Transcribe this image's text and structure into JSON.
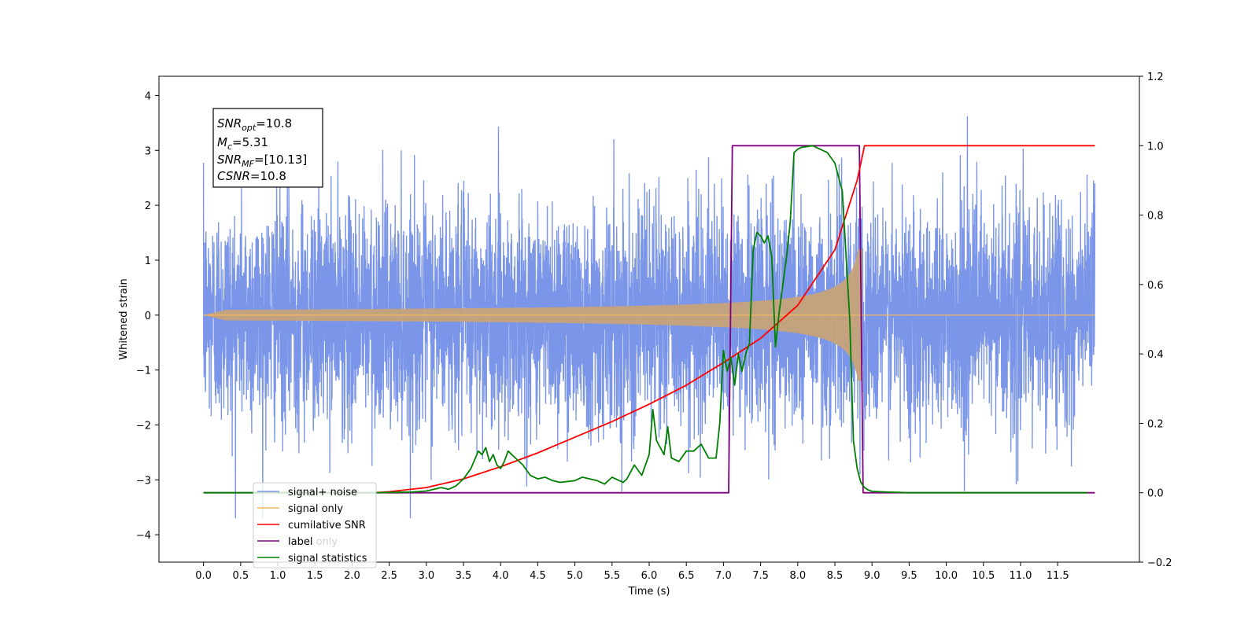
{
  "chart_data": {
    "type": "line",
    "xlabel": "Time (s)",
    "ylabel": "Whitened strain",
    "xlim": [
      -0.6,
      12.6
    ],
    "ylim": [
      -4.5,
      4.35
    ],
    "y2lim": [
      -0.2,
      1.2
    ],
    "grid": false,
    "legend_position": "lower-left",
    "x_ticks": [
      "0.0",
      "0.5",
      "1.0",
      "1.5",
      "2.0",
      "2.5",
      "3.0",
      "3.5",
      "4.0",
      "4.5",
      "5.0",
      "5.5",
      "6.0",
      "6.5",
      "7.0",
      "7.5",
      "8.0",
      "8.5",
      "9.0",
      "9.5",
      "10.0",
      "10.5",
      "11.0",
      "11.5"
    ],
    "y_ticks": [
      "4",
      "3",
      "2",
      "1",
      "0",
      "−1",
      "−2",
      "−3",
      "−4"
    ],
    "y2_ticks": [
      "1.2",
      "1.0",
      "0.8",
      "0.6",
      "0.4",
      "0.2",
      "0.0",
      "−0.2"
    ],
    "annotation": {
      "snr_opt": {
        "symbol": "SNR",
        "subscript": "opt",
        "value": "=10.8"
      },
      "mc": {
        "symbol": "M",
        "subscript": "c",
        "value": "=5.31"
      },
      "snr_mf": {
        "symbol": "SNR",
        "subscript": "MF",
        "value": "=[10.13]"
      },
      "csnr": {
        "symbol": "CSNR",
        "value": "=10.8"
      }
    },
    "series": [
      {
        "name": "signal+ noise",
        "axis": "left",
        "color": "#7b96e8",
        "description_range": [
          -3.7,
          3.9
        ],
        "x_range": [
          0.0,
          12.0
        ]
      },
      {
        "name": "signal only",
        "axis": "left",
        "color": "#f5b860",
        "fill_color": "#c7a27a",
        "chirp_end": 8.87,
        "max_amplitude": 1.2
      },
      {
        "name": "cumilative SNR",
        "axis": "right",
        "color": "#ff0000",
        "x": [
          2.3,
          2.5,
          3.0,
          3.5,
          4.0,
          4.5,
          5.0,
          5.5,
          6.0,
          6.5,
          7.0,
          7.5,
          8.0,
          8.5,
          8.8,
          8.9,
          12.0
        ],
        "y": [
          0.0,
          0.003,
          0.015,
          0.04,
          0.075,
          0.115,
          0.16,
          0.205,
          0.255,
          0.31,
          0.375,
          0.445,
          0.54,
          0.7,
          0.9,
          1.0,
          1.0
        ]
      },
      {
        "name": "label",
        "axis": "right",
        "color": "#800080",
        "x": [
          0.0,
          7.07,
          7.12,
          8.83,
          8.88,
          12.0
        ],
        "y": [
          0.0,
          0.0,
          1.0,
          1.0,
          0.0,
          0.0
        ]
      },
      {
        "name": "label only",
        "axis": "right",
        "color": "#800080"
      },
      {
        "name": "signal statistics",
        "axis": "right",
        "color": "#008000",
        "x": [
          0.0,
          2.3,
          2.8,
          3.0,
          3.2,
          3.3,
          3.4,
          3.5,
          3.6,
          3.7,
          3.75,
          3.8,
          3.85,
          3.9,
          3.95,
          4.0,
          4.05,
          4.1,
          4.15,
          4.2,
          4.3,
          4.4,
          4.5,
          4.6,
          4.7,
          4.8,
          5.0,
          5.1,
          5.2,
          5.3,
          5.4,
          5.5,
          5.6,
          5.65,
          5.7,
          5.8,
          5.9,
          6.0,
          6.05,
          6.1,
          6.2,
          6.25,
          6.3,
          6.4,
          6.5,
          6.6,
          6.7,
          6.75,
          6.8,
          6.9,
          6.95,
          7.0,
          7.05,
          7.1,
          7.15,
          7.2,
          7.25,
          7.3,
          7.35,
          7.4,
          7.45,
          7.5,
          7.55,
          7.6,
          7.65,
          7.7,
          7.75,
          7.8,
          7.85,
          7.9,
          7.95,
          8.0,
          8.05,
          8.2,
          8.3,
          8.4,
          8.5,
          8.6,
          8.7,
          8.75,
          8.8,
          8.85,
          8.9,
          8.95,
          9.0,
          9.2,
          9.5,
          10.0,
          11.0,
          11.9
        ],
        "y": [
          0.0,
          0.0,
          0.002,
          0.005,
          0.015,
          0.01,
          0.02,
          0.04,
          0.07,
          0.12,
          0.11,
          0.13,
          0.09,
          0.11,
          0.08,
          0.07,
          0.09,
          0.12,
          0.11,
          0.1,
          0.08,
          0.05,
          0.04,
          0.045,
          0.035,
          0.03,
          0.035,
          0.045,
          0.04,
          0.035,
          0.025,
          0.045,
          0.035,
          0.03,
          0.04,
          0.08,
          0.05,
          0.11,
          0.24,
          0.15,
          0.11,
          0.19,
          0.1,
          0.09,
          0.12,
          0.12,
          0.14,
          0.12,
          0.1,
          0.1,
          0.2,
          0.41,
          0.35,
          0.39,
          0.31,
          0.4,
          0.35,
          0.4,
          0.43,
          0.7,
          0.75,
          0.74,
          0.72,
          0.74,
          0.68,
          0.42,
          0.52,
          0.6,
          0.68,
          0.78,
          0.98,
          0.99,
          0.995,
          1.0,
          0.99,
          0.98,
          0.95,
          0.87,
          0.5,
          0.15,
          0.07,
          0.03,
          0.015,
          0.008,
          0.004,
          0.002,
          0.0,
          0.0,
          0.0,
          0.0
        ]
      }
    ]
  }
}
